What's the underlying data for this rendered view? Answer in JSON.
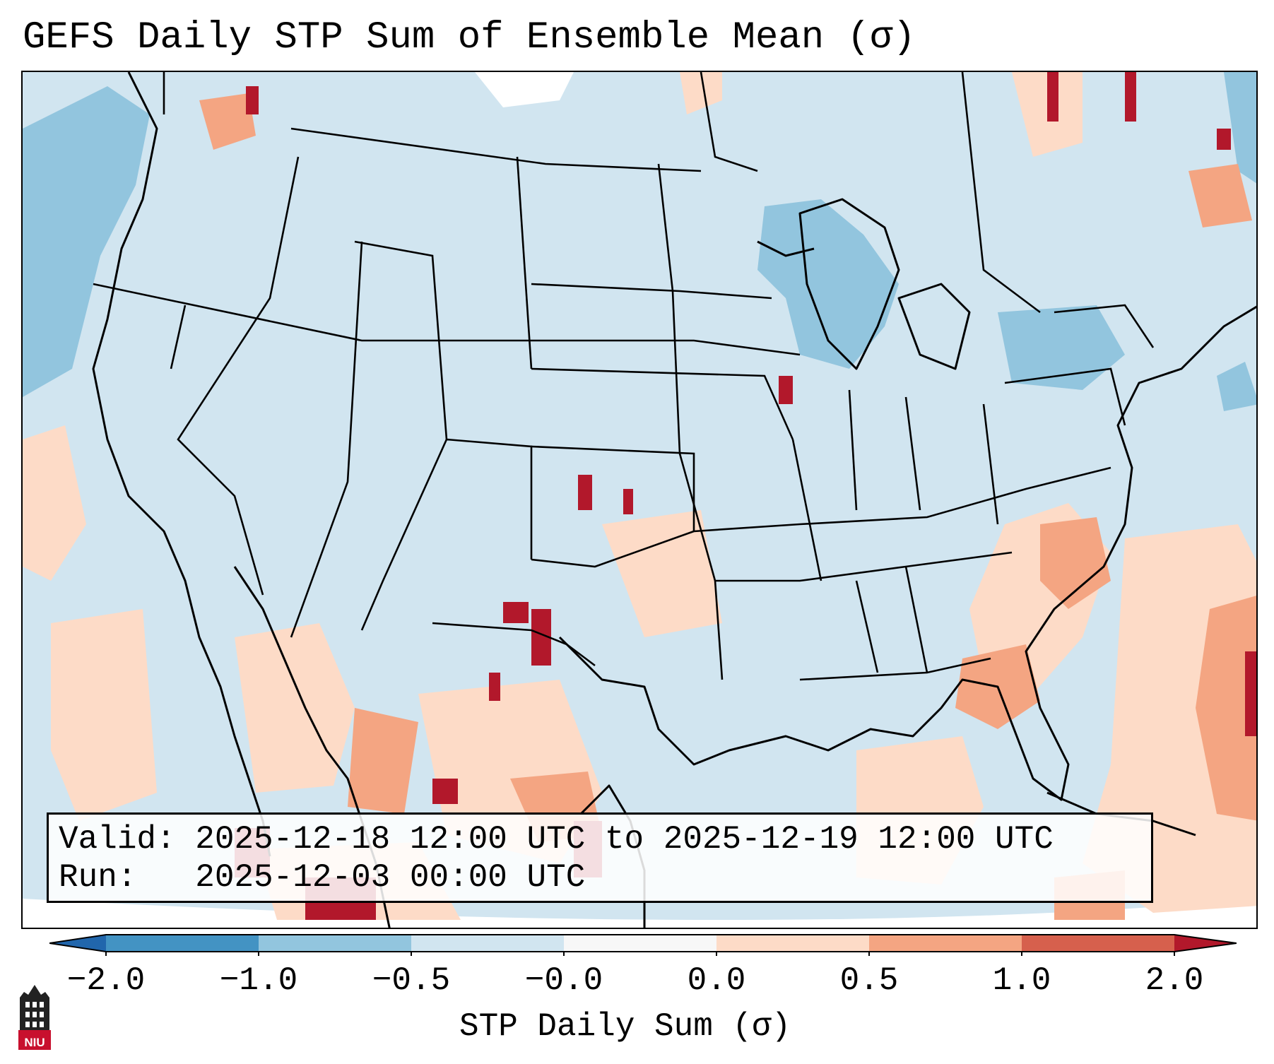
{
  "title": "GEFS Daily STP Sum of Ensemble Mean (σ)",
  "valid_label": "Valid: ",
  "valid_value": "2025-12-18 12:00 UTC to 2025-12-19 12:00 UTC",
  "run_label": "Run:   ",
  "run_value": "2025-12-03 00:00 UTC",
  "colorbar": {
    "label": "STP Daily Sum (σ)",
    "ticks": [
      "−2.0",
      "−1.0",
      "−0.5",
      "−0.0",
      "0.0",
      "0.5",
      "1.0",
      "2.0"
    ],
    "colors": [
      "#4393c3",
      "#92c5de",
      "#d1e5f0",
      "#f7f7f7",
      "#fddbc7",
      "#f4a582",
      "#d6604d",
      "#b2182b"
    ],
    "extend_low_color": "#2166ac",
    "extend_high_color": "#b2182b"
  },
  "logo": {
    "text": "NIU",
    "color": "#c8102e"
  },
  "colors": {
    "background_field": "#d1e5f0",
    "land_outline": "#000000"
  }
}
